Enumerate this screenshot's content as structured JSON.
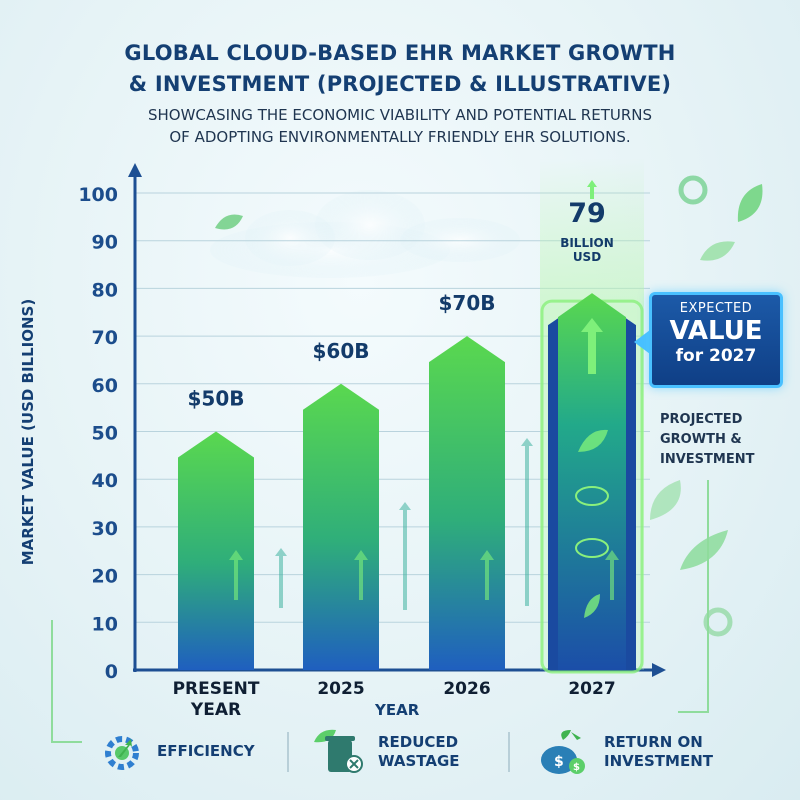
{
  "title_line1": "GLOBAL CLOUD-BASED EHR MARKET GROWTH",
  "title_line2": "& INVESTMENT (PROJECTED & ILLUSTRATIVE)",
  "subtitle_line1": "SHOWCASING THE ECONOMIC VIABILITY AND POTENTIAL RETURNS",
  "subtitle_line2": "OF ADOPTING ENVIRONMENTALLY FRIENDLY EHR SOLUTIONS.",
  "colors": {
    "title": "#143f73",
    "bar_green": "#5ad84f",
    "bar_blue": "#1f5fbf",
    "highlight": "#49c0ff"
  },
  "chart_data": {
    "type": "bar",
    "xlabel": "YEAR",
    "ylabel": "MARKET VALUE (USD BILLIONS)",
    "ylim": [
      0,
      100
    ],
    "yticks": [
      0,
      10,
      20,
      30,
      40,
      50,
      60,
      70,
      80,
      90,
      100
    ],
    "categories": [
      [
        "PRESENT",
        "YEAR"
      ],
      [
        "2025"
      ],
      [
        "2026"
      ],
      [
        "2027"
      ]
    ],
    "values": [
      50,
      60,
      70,
      79
    ],
    "data_labels": [
      "$50B",
      "$60B",
      "$70B",
      ""
    ],
    "grid": true,
    "highlight_index": 3
  },
  "peak": {
    "value": "79",
    "unit_line1": "BILLION",
    "unit_line2": "USD"
  },
  "callout": {
    "line1": "EXPECTED",
    "line2": "VALUE",
    "line3": "for 2027"
  },
  "side_note": [
    "PROJECTED",
    "GROWTH &",
    "INVESTMENT"
  ],
  "footer": {
    "items": [
      {
        "icon": "gear-growth-icon",
        "label_line1": "EFFICIENCY",
        "label_line2": ""
      },
      {
        "icon": "recycle-bin-leaf-icon",
        "label_line1": "REDUCED",
        "label_line2": "WASTAGE"
      },
      {
        "icon": "money-bag-icon",
        "label_line1": "RETURN ON",
        "label_line2": "INVESTMENT"
      }
    ]
  }
}
